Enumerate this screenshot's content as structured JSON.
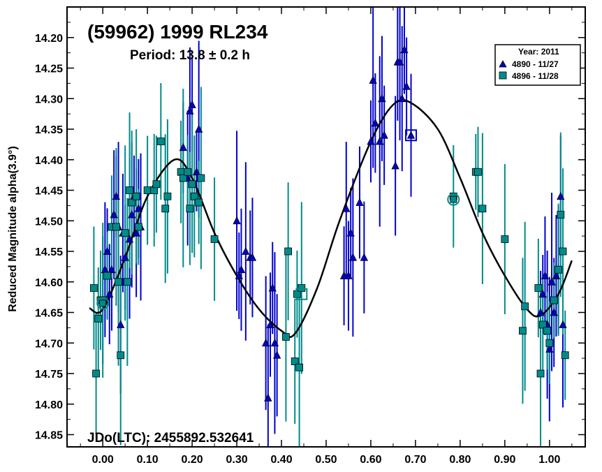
{
  "chart_data": {
    "type": "scatter",
    "title": "(59962) 1999 RL234",
    "subtitle": "Period: 13.8 ± 0.2 h",
    "annotation": "JDo(LTC): 2455892.532641",
    "ylabel": "Reduced Magnitude alpha(3.9°)",
    "xlabel": "",
    "xlim": [
      -0.08,
      1.08
    ],
    "ylim": [
      14.15,
      14.87
    ],
    "y_inverted": true,
    "grid": false,
    "legend_position": "top-right",
    "legend_title": "Year: 2011",
    "x_ticks": [
      "0.00",
      "0.10",
      "0.20",
      "0.30",
      "0.40",
      "0.50",
      "0.60",
      "0.70",
      "0.80",
      "0.90",
      "1.00"
    ],
    "y_ticks": [
      "14.20",
      "14.25",
      "14.30",
      "14.35",
      "14.40",
      "14.45",
      "14.50",
      "14.55",
      "14.60",
      "14.65",
      "14.70",
      "14.75",
      "14.80",
      "14.85"
    ],
    "fit_curve": {
      "x": [
        -0.03,
        0.0,
        0.05,
        0.1,
        0.16,
        0.2,
        0.25,
        0.3,
        0.35,
        0.4,
        0.43,
        0.48,
        0.53,
        0.6,
        0.65,
        0.69,
        0.75,
        0.8,
        0.85,
        0.9,
        0.95,
        0.98,
        1.02,
        1.05
      ],
      "y": [
        14.643,
        14.645,
        14.56,
        14.46,
        14.4,
        14.43,
        14.52,
        14.59,
        14.645,
        14.68,
        14.685,
        14.61,
        14.5,
        14.37,
        14.31,
        14.307,
        14.35,
        14.43,
        14.52,
        14.59,
        14.645,
        14.655,
        14.62,
        14.565
      ]
    },
    "series": [
      {
        "name": "4890 - 11/27",
        "marker": "triangle",
        "color": "#0000cd",
        "x": [
          0.0,
          0.005,
          0.01,
          0.015,
          0.02,
          0.025,
          0.03,
          0.035,
          0.04,
          0.045,
          0.05,
          0.06,
          0.065,
          0.07,
          0.075,
          0.08,
          0.085,
          0.18,
          0.19,
          0.195,
          0.2,
          0.21,
          0.215,
          0.3,
          0.305,
          0.31,
          0.32,
          0.33,
          0.335,
          0.365,
          0.37,
          0.375,
          0.38,
          0.385,
          0.39,
          0.54,
          0.545,
          0.55,
          0.555,
          0.56,
          0.575,
          0.585,
          0.6,
          0.605,
          0.61,
          0.62,
          0.625,
          0.63,
          0.655,
          0.66,
          0.665,
          0.67,
          0.675,
          0.68,
          0.69,
          0.98,
          0.985,
          0.99,
          0.995,
          1.0,
          1.005,
          1.01,
          1.015,
          1.02,
          1.025,
          1.03
        ],
        "y": [
          14.63,
          14.58,
          14.55,
          14.62,
          14.58,
          14.49,
          14.46,
          14.51,
          14.67,
          14.52,
          14.56,
          14.53,
          14.49,
          14.46,
          14.52,
          14.48,
          14.51,
          14.38,
          14.43,
          14.32,
          14.31,
          14.42,
          14.35,
          14.5,
          14.59,
          14.58,
          14.55,
          14.56,
          14.56,
          14.7,
          14.79,
          14.67,
          14.61,
          14.7,
          14.72,
          14.59,
          14.48,
          14.59,
          14.52,
          14.56,
          14.47,
          14.56,
          14.37,
          14.27,
          14.34,
          14.37,
          14.3,
          14.36,
          14.41,
          14.24,
          14.24,
          14.3,
          14.22,
          14.28,
          14.36,
          14.65,
          14.62,
          14.59,
          14.67,
          14.71,
          14.6,
          14.65,
          14.59,
          14.58,
          14.46,
          14.67
        ]
      },
      {
        "name": "4896 - 11/28",
        "marker": "square",
        "color": "#008b8b",
        "x": [
          -0.02,
          -0.015,
          -0.01,
          -0.005,
          0.0,
          0.01,
          0.02,
          0.03,
          0.035,
          0.04,
          0.05,
          0.055,
          0.06,
          0.065,
          0.075,
          0.08,
          0.1,
          0.115,
          0.12,
          0.13,
          0.14,
          0.145,
          0.175,
          0.18,
          0.19,
          0.195,
          0.2,
          0.205,
          0.215,
          0.22,
          0.25,
          0.41,
          0.415,
          0.43,
          0.435,
          0.44,
          0.445,
          0.785,
          0.835,
          0.84,
          0.85,
          0.9,
          0.94,
          0.945,
          0.975,
          0.98,
          0.985,
          0.995,
          1.0,
          1.01,
          1.02,
          1.025,
          1.03,
          1.035
        ],
        "y": [
          14.61,
          14.75,
          14.66,
          14.63,
          14.63,
          14.59,
          14.51,
          14.51,
          14.6,
          14.72,
          14.52,
          14.6,
          14.45,
          14.47,
          14.46,
          14.51,
          14.45,
          14.45,
          14.44,
          14.37,
          14.48,
          14.46,
          14.42,
          14.43,
          14.42,
          14.48,
          14.44,
          14.46,
          14.47,
          14.43,
          14.53,
          14.69,
          14.55,
          14.73,
          14.62,
          14.74,
          14.61,
          14.46,
          14.42,
          14.42,
          14.48,
          14.53,
          14.68,
          14.64,
          14.61,
          14.75,
          14.67,
          14.68,
          14.7,
          14.63,
          14.58,
          14.49,
          14.55,
          14.72
        ]
      }
    ],
    "highlighted_points": [
      {
        "series": "4896 - 11/28",
        "x": 0.785,
        "y": 14.465,
        "marker": "circle"
      },
      {
        "series": "4890 - 11/27",
        "x": 0.69,
        "y": 14.36,
        "marker": "open-square"
      },
      {
        "series": "4896 - 11/28",
        "x": 0.445,
        "y": 14.62,
        "marker": "open-square"
      },
      {
        "series": "4896 - 11/28",
        "x": 0.0,
        "y": 14.635,
        "marker": "circle"
      }
    ]
  }
}
